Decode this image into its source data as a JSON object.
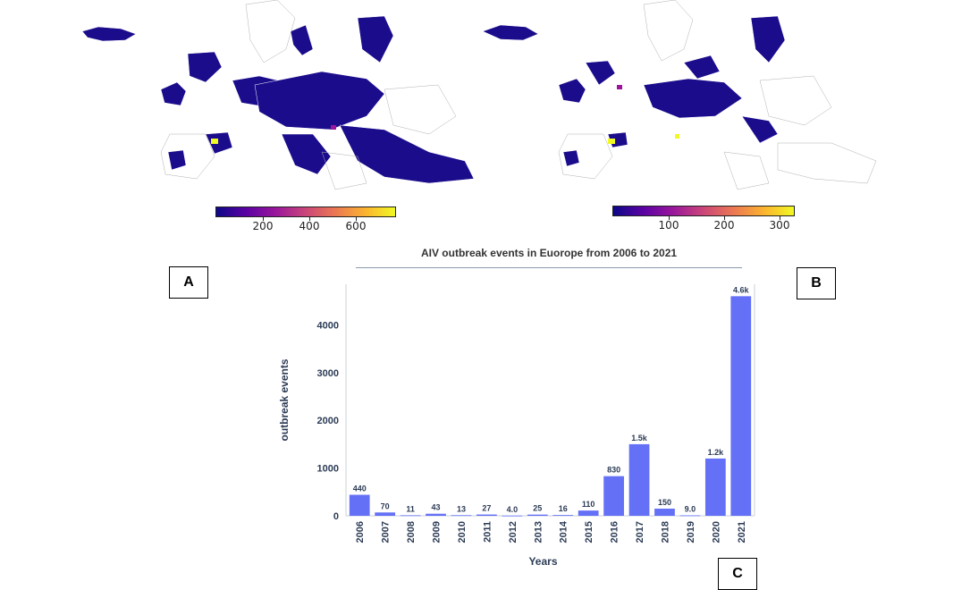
{
  "panels": {
    "a": "A",
    "b": "B",
    "c": "C"
  },
  "colorbar_a": {
    "ticks": [
      "200",
      "400",
      "600"
    ],
    "colormap": "plasma"
  },
  "colorbar_b": {
    "ticks": [
      "100",
      "200",
      "300"
    ],
    "colormap": "plasma"
  },
  "colors": {
    "bar": "#6470f6",
    "map_fill": "#1b0c8c",
    "map_border": "#cccccc"
  },
  "chart_data": {
    "type": "bar",
    "title": "AIV outbreak events in Euorope from 2006 to 2021",
    "xlabel": "Years",
    "ylabel": "outbreak events",
    "categories": [
      "2006",
      "2007",
      "2008",
      "2009",
      "2010",
      "2011",
      "2012",
      "2013",
      "2014",
      "2015",
      "2016",
      "2017",
      "2018",
      "2019",
      "2020",
      "2021"
    ],
    "values": [
      440,
      70,
      11,
      43,
      13,
      27,
      4,
      25,
      16,
      110,
      830,
      1500,
      150,
      9,
      1200,
      4600
    ],
    "data_labels": [
      "440",
      "70",
      "11",
      "43",
      "13",
      "27",
      "4.0",
      "25",
      "16",
      "110",
      "830",
      "1.5k",
      "150",
      "9.0",
      "1.2k",
      "4.6k"
    ],
    "yticks": [
      "0",
      "1000",
      "2000",
      "3000",
      "4000"
    ],
    "ylim": [
      0,
      4850
    ]
  }
}
